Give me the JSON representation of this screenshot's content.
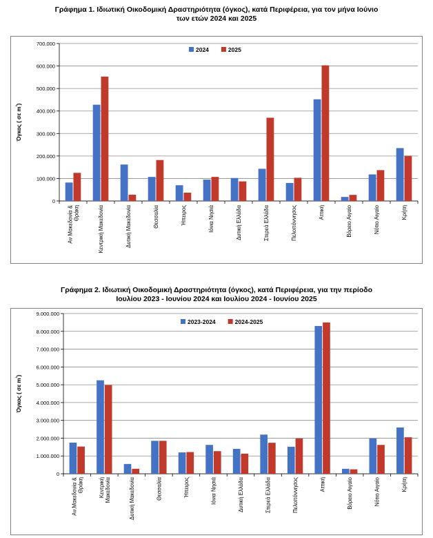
{
  "colors": {
    "series_2024": "#4472C4",
    "series_2025": "#C0392B",
    "grid": "#8c8c8c"
  },
  "charts": [
    {
      "title_line1": "Γράφημα 1.  Ιδιωτική Οικοδομική Δραστηριότητα (όγκος), κατά Περιφέρεια, για τον μήνα Ιούνιο",
      "title_line2": "των ετών 2024 και 2025"
    },
    {
      "title_line1": "Γράφημα 2.  Ιδιωτική Οικοδομική Δραστηριότητα (όγκος), κατά Περιφέρεια, για την περίοδο",
      "title_line2": "Ιουλίου 2023 - Ιουνίου 2024 και Ιουλίου 2024 - Ιουνίου 2025"
    }
  ],
  "chart_data": [
    {
      "type": "bar",
      "title": "Γράφημα 1.  Ιδιωτική Οικοδομική Δραστηριότητα (όγκος), κατά Περιφέρεια, για τον μήνα Ιούνιο των ετών 2024 και 2025",
      "ylabel": "Όγκος ( σε m³)",
      "xlabel": "",
      "ylim": [
        0,
        700000
      ],
      "yticks": [
        0,
        100000,
        200000,
        300000,
        400000,
        500000,
        600000,
        700000
      ],
      "ytick_labels": [
        "0",
        "100.000",
        "200.000",
        "300.000",
        "400.000",
        "500.000",
        "600.000",
        "700.000"
      ],
      "grid": true,
      "legend_position": "top-center",
      "categories": [
        "Αν Μακεδονία & Θράκη",
        "Κεντρική Μακεδονία",
        "Δυτική Μακεδονία",
        "Θεσσαλία",
        "Ήπειρος",
        "Ιόνια Νησιά",
        "Δυτική Ελλάδα",
        "Στερεά Ελλάδα",
        "Πελοπόννησος",
        "Αττική",
        "Βόρειο Αιγαίο",
        "Νότιο Αιγαίο",
        "Κρήτη"
      ],
      "category_lines": [
        [
          "Αν Μακεδονία &",
          "Θράκη"
        ],
        [
          "Κεντρική Μακεδονία"
        ],
        [
          "Δυτική Μακεδονία"
        ],
        [
          "Θεσσαλία"
        ],
        [
          "Ήπειρος"
        ],
        [
          "Ιόνια Νησιά"
        ],
        [
          "Δυτική Ελλάδα"
        ],
        [
          "Στερεά Ελλάδα"
        ],
        [
          "Πελοπόννησος"
        ],
        [
          "Αττική"
        ],
        [
          "Βόρειο Αιγαίο"
        ],
        [
          "Νότιο Αιγαίο"
        ],
        [
          "Κρήτη"
        ]
      ],
      "series": [
        {
          "name": "2024",
          "color": "#4472C4",
          "values": [
            82000,
            428000,
            162000,
            107000,
            70000,
            95000,
            102000,
            143000,
            80000,
            452000,
            18000,
            118000,
            235000
          ]
        },
        {
          "name": "2025",
          "color": "#C0392B",
          "values": [
            125000,
            553000,
            28000,
            182000,
            37000,
            107000,
            87000,
            370000,
            103000,
            603000,
            27000,
            137000,
            201000
          ]
        }
      ]
    },
    {
      "type": "bar",
      "title": "Γράφημα 2.  Ιδιωτική Οικοδομική Δραστηριότητα (όγκος), κατά Περιφέρεια, για την περίοδο Ιουλίου 2023 - Ιουνίου 2024 και Ιουλίου 2024 - Ιουνίου 2025",
      "ylabel": "Όγκος ( σε m³)",
      "xlabel": "",
      "ylim": [
        0,
        9000000
      ],
      "yticks": [
        0,
        1000000,
        2000000,
        3000000,
        4000000,
        5000000,
        6000000,
        7000000,
        8000000,
        9000000
      ],
      "ytick_labels": [
        "0",
        "1.000.000",
        "2.000.000",
        "3.000.000",
        "4.000.000",
        "5.000.000",
        "6.000.000",
        "7.000.000",
        "8.000.000",
        "9.000.000"
      ],
      "grid": true,
      "legend_position": "top-center",
      "categories": [
        "Αν.Μακεδονία & Θράκη",
        "Κεντρική Μακεδονία",
        "Δυτική Μακεδονία",
        "Θεσσαλία",
        "Ήπειρος",
        "Ιόνια Νησιά",
        "Δυτική Ελλάδα",
        "Στερεά Ελλάδα",
        "Πελοπόννησος",
        "Αττική",
        "Βόρειο Αιγαίο",
        "Νότιο Αιγαίο",
        "Κρήτη"
      ],
      "category_lines": [
        [
          "Αν.Μακεδονία &",
          "Θράκη"
        ],
        [
          "Κεντρική",
          "Μακεδονία"
        ],
        [
          "Δυτική Μακεδονία"
        ],
        [
          "Θεσσαλία"
        ],
        [
          "Ήπειρος"
        ],
        [
          "Ιόνια Νησιά"
        ],
        [
          "Δυτική Ελλάδα"
        ],
        [
          "Στερεά Ελλάδα"
        ],
        [
          "Πελοπόννησος"
        ],
        [
          "Αττική"
        ],
        [
          "Βόρειο Αιγαίο"
        ],
        [
          "Νότιο Αιγαίο"
        ],
        [
          "Κρήτη"
        ]
      ],
      "series": [
        {
          "name": "2023-2024",
          "color": "#4472C4",
          "values": [
            1750000,
            5250000,
            550000,
            1850000,
            1200000,
            1620000,
            1400000,
            2200000,
            1520000,
            8300000,
            280000,
            1980000,
            2600000
          ]
        },
        {
          "name": "2024-2025",
          "color": "#C0392B",
          "values": [
            1530000,
            4980000,
            280000,
            1850000,
            1220000,
            1270000,
            1130000,
            1740000,
            1980000,
            8500000,
            250000,
            1620000,
            2050000
          ]
        }
      ]
    }
  ]
}
